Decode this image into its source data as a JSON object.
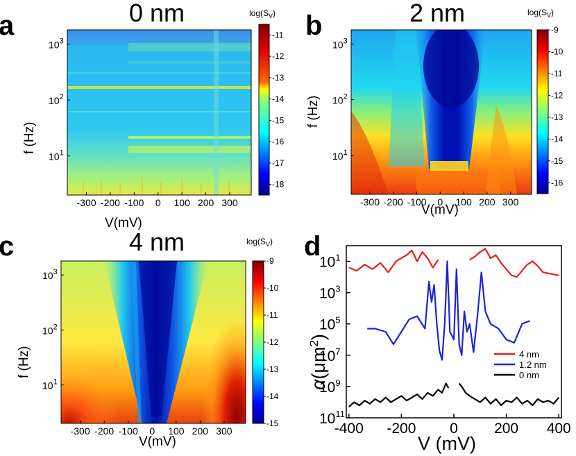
{
  "figure_panels": [
    {
      "letter": "a",
      "title": "0 nm",
      "xlabel": "V(mV)",
      "ylabel": "f (Hz)",
      "colorbar_label": "log(S",
      "colorbar_sub": "V",
      "colorbar_close": ")",
      "x_ticks": [
        "-300",
        "-200",
        "-100",
        "0",
        "100",
        "200",
        "300"
      ],
      "y_ticks": [
        "10",
        "10",
        "10"
      ],
      "y_exps": [
        "1",
        "2",
        "3"
      ],
      "cb_ticks": [
        "-11",
        "-12",
        "-13",
        "-14",
        "-15",
        "-16",
        "-17",
        "-18"
      ]
    },
    {
      "letter": "b",
      "title": "2 nm",
      "xlabel": "V(mV)",
      "ylabel": "f (Hz)",
      "colorbar_label": "log(S",
      "colorbar_sub": "V",
      "colorbar_close": ")",
      "x_ticks": [
        "-300",
        "-200",
        "-100",
        "0",
        "100",
        "200",
        "300"
      ],
      "y_ticks": [
        "10",
        "10",
        "10"
      ],
      "y_exps": [
        "1",
        "2",
        "3"
      ],
      "cb_ticks": [
        "-9",
        "-10",
        "-11",
        "-12",
        "-13",
        "-14",
        "-15",
        "-16"
      ]
    },
    {
      "letter": "c",
      "title": "4 nm",
      "xlabel": "V(mV)",
      "ylabel": "f (Hz)",
      "colorbar_label": "log(S",
      "colorbar_sub": "V",
      "colorbar_close": ")",
      "x_ticks": [
        "-300",
        "-200",
        "-100",
        "0",
        "100",
        "200",
        "300"
      ],
      "y_ticks": [
        "10",
        "10",
        "10"
      ],
      "y_exps": [
        "1",
        "2",
        "3"
      ],
      "cb_ticks": [
        "-9",
        "-10",
        "-11",
        "-12",
        "-13",
        "-14",
        "-15"
      ]
    },
    {
      "letter": "d",
      "xlabel": "V (mV)",
      "ylabel_sym": "α",
      "ylabel_unit": "(μm",
      "ylabel_sup": "2",
      "ylabel_close": ")",
      "x_ticks": [
        "-400",
        "-200",
        "0",
        "200",
        "400"
      ],
      "y_ticks": [
        "10",
        "10",
        "10",
        "10",
        "10",
        "10"
      ],
      "y_exps": [
        "1",
        "3",
        "5",
        "7",
        "9",
        "11"
      ]
    }
  ],
  "chart_data": [
    {
      "type": "heatmap",
      "title": "0 nm",
      "xlabel": "V(mV)",
      "ylabel": "f (Hz)",
      "xlim": [
        -380,
        390
      ],
      "ylim": [
        2,
        1800
      ],
      "y_scale": "log",
      "colorbar": {
        "label": "log(S_V)",
        "range": [
          -18.5,
          -10.5
        ]
      },
      "description_values": {
        "background_level": -15,
        "low_frequency_level": -13.5,
        "line_at_160Hz": -14
      }
    },
    {
      "type": "heatmap",
      "title": "2 nm",
      "xlabel": "V(mV)",
      "ylabel": "f (Hz)",
      "xlim": [
        -380,
        390
      ],
      "ylim": [
        2,
        1800
      ],
      "y_scale": "log",
      "colorbar": {
        "label": "log(S_V)",
        "range": [
          -16.5,
          -9
        ]
      },
      "description_values": {
        "low_frequency_level": -10,
        "center_dark_level": -16
      }
    },
    {
      "type": "heatmap",
      "title": "4 nm",
      "xlabel": "V(mV)",
      "ylabel": "f (Hz)",
      "xlim": [
        -380,
        390
      ],
      "ylim": [
        2,
        1800
      ],
      "y_scale": "log",
      "colorbar": {
        "label": "log(S_V)",
        "range": [
          -15,
          -9
        ]
      },
      "description_values": {
        "low_frequency_level": -9.5,
        "center_dark_level": -15
      }
    },
    {
      "type": "line",
      "xlabel": "V (mV)",
      "ylabel": "α (μm²)",
      "xlim": [
        -410,
        410
      ],
      "ylim_log10_inverted": [
        0,
        11
      ],
      "legend_position": "bottom-right",
      "series": [
        {
          "name": "4 nm",
          "color": "#e8201a",
          "x": [
            -400,
            -370,
            -340,
            -310,
            -280,
            -250,
            -220,
            -200,
            -180,
            -160,
            -140,
            -120,
            -100,
            -80,
            -60,
            null,
            60,
            80,
            100,
            120,
            140,
            160,
            180,
            200,
            220,
            240,
            260,
            280,
            300,
            320,
            340,
            370,
            400
          ],
          "log10_alpha": [
            1.4,
            1.6,
            1.2,
            1.5,
            1.1,
            1.7,
            1.0,
            0.8,
            0.6,
            0.3,
            1.0,
            0.4,
            0.8,
            1.4,
            0.9,
            null,
            0.9,
            0.7,
            0.4,
            0.2,
            0.8,
            0.6,
            1.1,
            1.5,
            1.9,
            2.0,
            1.6,
            1.2,
            1.0,
            1.3,
            1.7,
            1.8,
            1.9
          ]
        },
        {
          "name": "1.2 nm",
          "color": "#1a24d6",
          "x": [
            -330,
            -300,
            -260,
            -230,
            -200,
            -170,
            -140,
            -110,
            -95,
            -85,
            -75,
            -65,
            -55,
            -45,
            -35,
            -25,
            -15,
            0,
            10,
            20,
            30,
            40,
            50,
            60,
            75,
            90,
            105,
            120,
            140,
            170,
            200,
            230,
            260,
            290
          ],
          "log10_alpha": [
            5.3,
            5.3,
            5.5,
            6.3,
            5.5,
            4.7,
            4.5,
            5.3,
            2.3,
            3.6,
            2.5,
            5.0,
            6.7,
            7.3,
            5.0,
            1.0,
            5.5,
            6.0,
            1.5,
            6.3,
            7.0,
            4.2,
            5.5,
            5.0,
            6.8,
            4.5,
            1.7,
            4.2,
            5.0,
            5.3,
            6.0,
            6.2,
            5.0,
            4.8
          ]
        },
        {
          "name": "0 nm",
          "color": "#000000",
          "x": [
            -400,
            -380,
            -360,
            -340,
            -320,
            -300,
            -280,
            -260,
            -240,
            -220,
            -200,
            -180,
            -160,
            -140,
            -120,
            -100,
            -80,
            -60,
            -45,
            -30,
            -20,
            null,
            20,
            30,
            45,
            60,
            80,
            100,
            120,
            140,
            160,
            180,
            200,
            220,
            240,
            260,
            280,
            300,
            320,
            340,
            360,
            380,
            400
          ],
          "log10_alpha": [
            10.3,
            10.0,
            10.2,
            9.9,
            10.1,
            9.8,
            10.0,
            9.7,
            10.0,
            9.8,
            9.6,
            9.9,
            9.7,
            9.5,
            9.8,
            9.4,
            9.6,
            9.2,
            9.4,
            8.8,
            9.1,
            null,
            8.8,
            9.0,
            9.4,
            9.6,
            9.8,
            10.0,
            9.7,
            10.1,
            9.8,
            10.2,
            9.9,
            10.0,
            9.7,
            10.1,
            9.9,
            10.2,
            9.8,
            10.0,
            9.9,
            10.1,
            9.7
          ]
        }
      ]
    }
  ]
}
